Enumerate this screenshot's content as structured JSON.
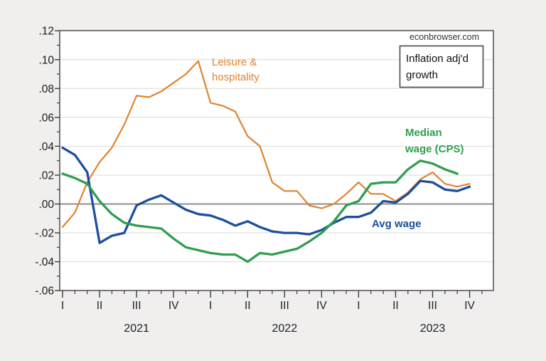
{
  "page": {
    "watermark": "econbrowser.com",
    "background": "#f0efee"
  },
  "info_box": {
    "line1": "Inflation adj'd",
    "line2": "growth"
  },
  "chart_data": {
    "type": "line",
    "title": "",
    "ylabel": "",
    "xlabel": "",
    "grid": "horizontal",
    "y_axis": {
      "min": -0.06,
      "max": 0.12,
      "tick_step": 0.02,
      "tick_labels": [
        ".12",
        ".10",
        ".08",
        ".06",
        ".04",
        ".02",
        ".00",
        "-.02",
        "-.04",
        "-.06"
      ],
      "tick_values": [
        0.12,
        0.1,
        0.08,
        0.06,
        0.04,
        0.02,
        0.0,
        -0.02,
        -0.04,
        -0.06
      ]
    },
    "x_axis": {
      "unit": "month",
      "start": "2021-01",
      "end": "2023-10",
      "quarter_tick_labels": [
        "I",
        "II",
        "III",
        "IV",
        "I",
        "II",
        "III",
        "IV",
        "I",
        "II",
        "III",
        "IV"
      ],
      "year_labels": [
        "2021",
        "2022",
        "2023"
      ]
    },
    "months": [
      "2021-01",
      "2021-02",
      "2021-03",
      "2021-04",
      "2021-05",
      "2021-06",
      "2021-07",
      "2021-08",
      "2021-09",
      "2021-10",
      "2021-11",
      "2021-12",
      "2022-01",
      "2022-02",
      "2022-03",
      "2022-04",
      "2022-05",
      "2022-06",
      "2022-07",
      "2022-08",
      "2022-09",
      "2022-10",
      "2022-11",
      "2022-12",
      "2023-01",
      "2023-02",
      "2023-03",
      "2023-04",
      "2023-05",
      "2023-06",
      "2023-07",
      "2023-08",
      "2023-09",
      "2023-10"
    ],
    "series": [
      {
        "name": "Leisure & hospitality",
        "color": "#e0832f",
        "line_width": 2.2,
        "label_lines": [
          "Leisure &",
          "hospitality"
        ],
        "values": [
          -0.016,
          -0.006,
          0.015,
          0.029,
          0.039,
          0.055,
          0.075,
          0.074,
          0.078,
          0.084,
          0.09,
          0.099,
          0.07,
          0.068,
          0.064,
          0.047,
          0.04,
          0.015,
          0.009,
          0.009,
          -0.001,
          -0.003,
          0.0,
          0.007,
          0.015,
          0.007,
          0.007,
          0.002,
          0.008,
          0.017,
          0.022,
          0.014,
          0.012,
          0.014
        ]
      },
      {
        "name": "Avg wage",
        "color": "#1d4f9c",
        "line_width": 3.3,
        "label_lines": [
          "Avg wage"
        ],
        "values": [
          0.039,
          0.034,
          0.022,
          -0.027,
          -0.022,
          -0.02,
          -0.001,
          0.003,
          0.006,
          0.001,
          -0.004,
          -0.007,
          -0.008,
          -0.011,
          -0.015,
          -0.012,
          -0.016,
          -0.019,
          -0.02,
          -0.02,
          -0.021,
          -0.018,
          -0.013,
          -0.009,
          -0.009,
          -0.006,
          0.002,
          0.001,
          0.007,
          0.016,
          0.015,
          0.01,
          0.009,
          0.012
        ]
      },
      {
        "name": "Median wage (CPS)",
        "color": "#2f9e4e",
        "line_width": 3.3,
        "label_lines": [
          "Median",
          "wage (CPS)"
        ],
        "values": [
          0.021,
          0.018,
          0.014,
          0.002,
          -0.007,
          -0.013,
          -0.015,
          -0.016,
          -0.017,
          -0.024,
          -0.03,
          -0.032,
          -0.034,
          -0.035,
          -0.035,
          -0.04,
          -0.034,
          -0.035,
          -0.033,
          -0.031,
          -0.026,
          -0.02,
          -0.012,
          -0.001,
          0.002,
          0.014,
          0.015,
          0.015,
          0.024,
          0.03,
          0.028,
          0.024,
          0.021
        ]
      }
    ],
    "legend_position": "inline-annotations"
  }
}
